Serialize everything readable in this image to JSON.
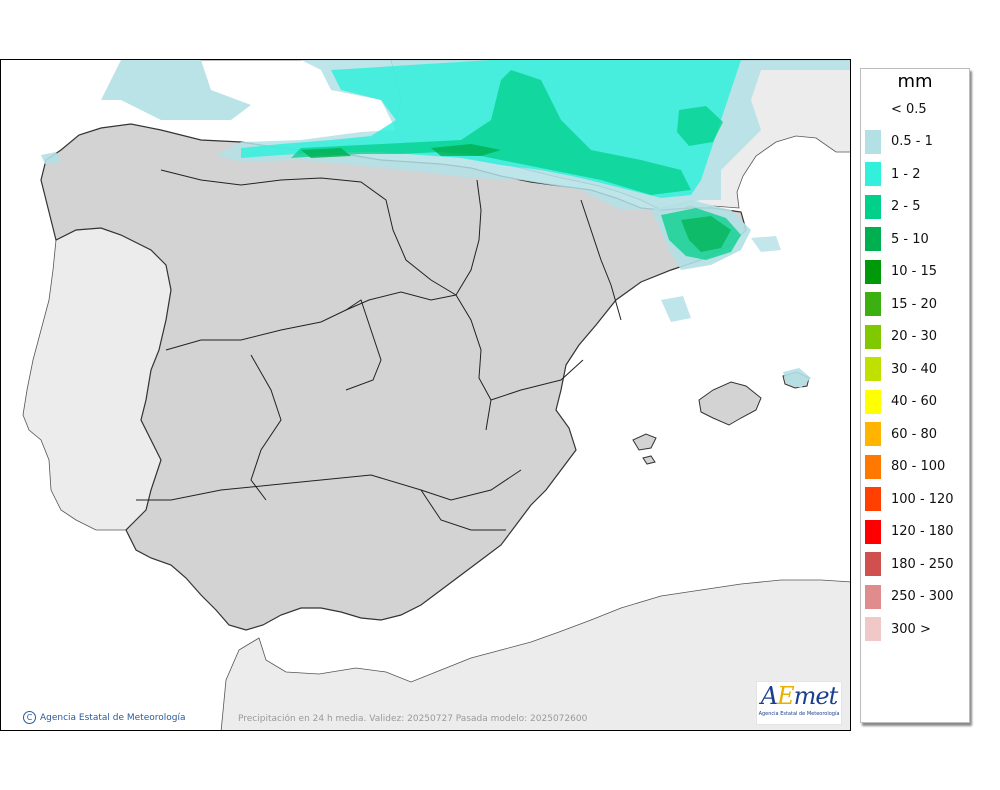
{
  "map": {
    "caption": "Precipitación en 24 h media. Validez: 20250727 Pasada modelo: 2025072600",
    "copyright": "Agencia Estatal de Meteorología",
    "copyright_symbol": "C",
    "logo": {
      "word_a": "A",
      "word_e": "E",
      "word_met": "met",
      "subtitle": "Agencia Estatal de Meteorología"
    },
    "colors": {
      "land": "#d3d3d3",
      "foreign_land": "#ececec",
      "sea": "#ffffff",
      "border": "#333333"
    },
    "icon": "copyright-icon"
  },
  "legend": {
    "unit": "mm",
    "items": [
      {
        "label": "< 0.5",
        "color": "#ffffff"
      },
      {
        "label": "0.5 - 1",
        "color": "#b3e0e5"
      },
      {
        "label": "1 - 2",
        "color": "#33f0dc"
      },
      {
        "label": "2 - 5",
        "color": "#00d08a"
      },
      {
        "label": "5 - 10",
        "color": "#00b050"
      },
      {
        "label": "10 - 15",
        "color": "#00990a"
      },
      {
        "label": "15 - 20",
        "color": "#3cb010"
      },
      {
        "label": "20 - 30",
        "color": "#80c800"
      },
      {
        "label": "30 - 40",
        "color": "#c0e000"
      },
      {
        "label": "40 - 60",
        "color": "#ffff00"
      },
      {
        "label": "60 - 80",
        "color": "#ffb400"
      },
      {
        "label": "80 - 100",
        "color": "#ff7800"
      },
      {
        "label": "100 - 120",
        "color": "#ff4000"
      },
      {
        "label": "120 - 180",
        "color": "#ff0000"
      },
      {
        "label": "180 - 250",
        "color": "#d05050"
      },
      {
        "label": "250 - 300",
        "color": "#e08c8c"
      },
      {
        "label": "300 >",
        "color": "#f0c8c8"
      }
    ]
  }
}
